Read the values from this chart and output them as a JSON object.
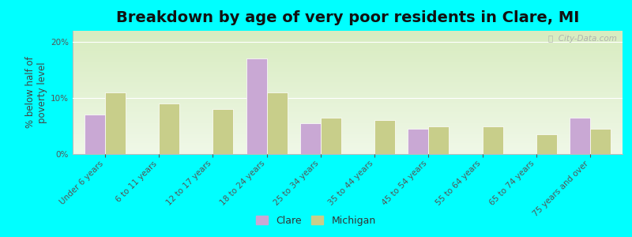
{
  "title": "Breakdown by age of very poor residents in Clare, MI",
  "ylabel": "% below half of\npoverty level",
  "categories": [
    "Under 6 years",
    "6 to 11 years",
    "12 to 17 years",
    "18 to 24 years",
    "25 to 34 years",
    "35 to 44 years",
    "45 to 54 years",
    "55 to 64 years",
    "65 to 74 years",
    "75 years and over"
  ],
  "clare_values": [
    7.0,
    0.0,
    0.0,
    17.0,
    5.5,
    0.0,
    4.5,
    0.0,
    0.0,
    6.5
  ],
  "michigan_values": [
    11.0,
    9.0,
    8.0,
    11.0,
    6.5,
    6.0,
    5.0,
    5.0,
    3.5,
    4.5
  ],
  "clare_color": "#c9a8d4",
  "michigan_color": "#c8ce8a",
  "background_color": "#00ffff",
  "plot_bg_grad_top": "#d8ecc0",
  "plot_bg_grad_bottom": "#f0f8e8",
  "bar_edge_color": "#ffffff",
  "ylim": [
    0,
    22
  ],
  "yticks": [
    0,
    10,
    20
  ],
  "ytick_labels": [
    "0%",
    "10%",
    "20%"
  ],
  "title_fontsize": 14,
  "axis_label_fontsize": 8.5,
  "tick_label_fontsize": 7.5,
  "legend_fontsize": 9,
  "watermark_text": "ⓘ  City-Data.com",
  "bar_width": 0.38
}
